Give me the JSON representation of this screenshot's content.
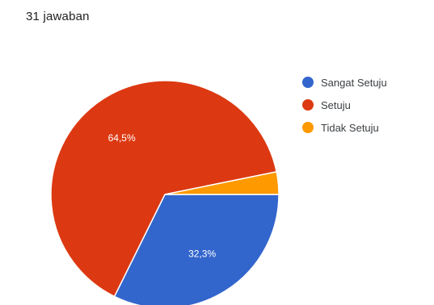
{
  "header": {
    "response_count": "31 jawaban"
  },
  "chart_data": {
    "type": "pie",
    "categories": [
      "Sangat Setuju",
      "Setuju",
      "Tidak Setuju"
    ],
    "values": [
      32.3,
      64.5,
      3.2
    ],
    "labels": [
      "32,3%",
      "64,5%",
      ""
    ],
    "colors": [
      "#3366cc",
      "#dc3912",
      "#ff9900"
    ],
    "legend_position": "right"
  }
}
